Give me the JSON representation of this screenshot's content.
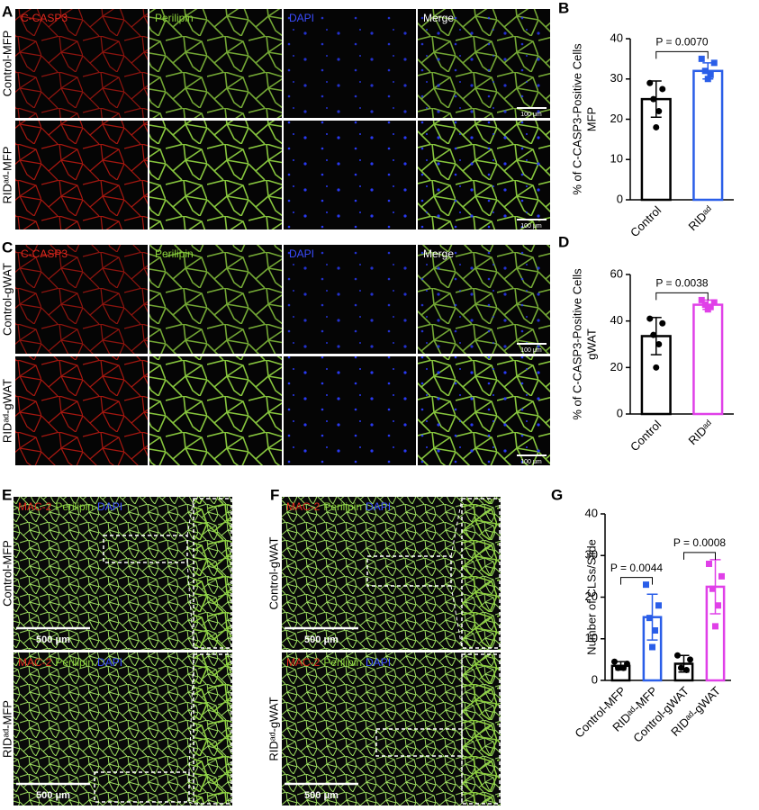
{
  "figure": {
    "A": {
      "letter": "A",
      "channels": [
        "C-CASP3",
        "Perilipin",
        "DAPI",
        "Merge"
      ],
      "rows": [
        "Control-MFP",
        "RIDᵃᵈ-MFP"
      ],
      "scale_bar": "100 μm"
    },
    "C": {
      "letter": "C",
      "channels": [
        "C-CASP3",
        "Perilipin",
        "DAPI",
        "Merge"
      ],
      "rows": [
        "Control-gWAT",
        "RIDᵃᵈ-gWAT"
      ],
      "scale_bar": "100 μm"
    },
    "E": {
      "letter": "E",
      "stains": [
        "MAC-2",
        "Perilipin",
        "DAPI"
      ],
      "rows": [
        "Control-MFP",
        "RIDᵃᵈ-MFP"
      ],
      "scale_bar": "500 μm"
    },
    "F": {
      "letter": "F",
      "stains": [
        "MAC-2",
        "Perilipin",
        "DAPI"
      ],
      "rows": [
        "Control-gWAT",
        "RIDᵃᵈ-gWAT"
      ],
      "scale_bar": "500 μm"
    }
  },
  "chart_data": [
    {
      "type": "bar",
      "letter": "B",
      "ylabel": [
        "% of C-CASP3-Positive Cells",
        "MFP"
      ],
      "categories": [
        "Control",
        "RIDᵃᵈ"
      ],
      "values": [
        25,
        32
      ],
      "errors": [
        4.5,
        2
      ],
      "points": [
        [
          29,
          27.5,
          25,
          22,
          18
        ],
        [
          35,
          34,
          32,
          31,
          30
        ]
      ],
      "colors": [
        "#000000",
        "#2a5ee8"
      ],
      "markers": [
        "circle",
        "square"
      ],
      "annotations": [
        "P = 0.0070"
      ],
      "ylim": [
        0,
        40
      ],
      "yticks": [
        0,
        10,
        20,
        30,
        40
      ]
    },
    {
      "type": "bar",
      "letter": "D",
      "ylabel": [
        "% of C-CASP3-Positive Cells",
        "gWAT"
      ],
      "categories": [
        "Control",
        "RIDᵃᵈ"
      ],
      "values": [
        33.5,
        47
      ],
      "errors": [
        8,
        2
      ],
      "points": [
        [
          41,
          39,
          34,
          30,
          20
        ],
        [
          49,
          48,
          47,
          46,
          45
        ]
      ],
      "colors": [
        "#000000",
        "#e040e8"
      ],
      "markers": [
        "circle",
        "square"
      ],
      "annotations": [
        "P = 0.0038"
      ],
      "ylim": [
        0,
        60
      ],
      "yticks": [
        0,
        20,
        40,
        60
      ]
    },
    {
      "type": "bar",
      "letter": "G",
      "ylabel": [
        "Number of CLSs/Slide"
      ],
      "categories": [
        "Control-MFP",
        "RIDᵃᵈ-MFP",
        "Control-gWAT",
        "RIDᵃᵈ-gWAT"
      ],
      "values": [
        3.5,
        15.2,
        4,
        22.5
      ],
      "errors": [
        1,
        5.5,
        2,
        6.5
      ],
      "points": [
        [
          4.5,
          4,
          3,
          3
        ],
        [
          23,
          18,
          15,
          12,
          8
        ],
        [
          6,
          5,
          3,
          2.5
        ],
        [
          28,
          25,
          22,
          18,
          13
        ]
      ],
      "colors": [
        "#000000",
        "#2a5ee8",
        "#000000",
        "#e040e8"
      ],
      "markers": [
        "circle",
        "square",
        "circle",
        "square"
      ],
      "annotations": [
        "P = 0.0044",
        "P = 0.0008"
      ],
      "ylim": [
        0,
        40
      ],
      "yticks": [
        0,
        10,
        20,
        30,
        40
      ]
    }
  ]
}
